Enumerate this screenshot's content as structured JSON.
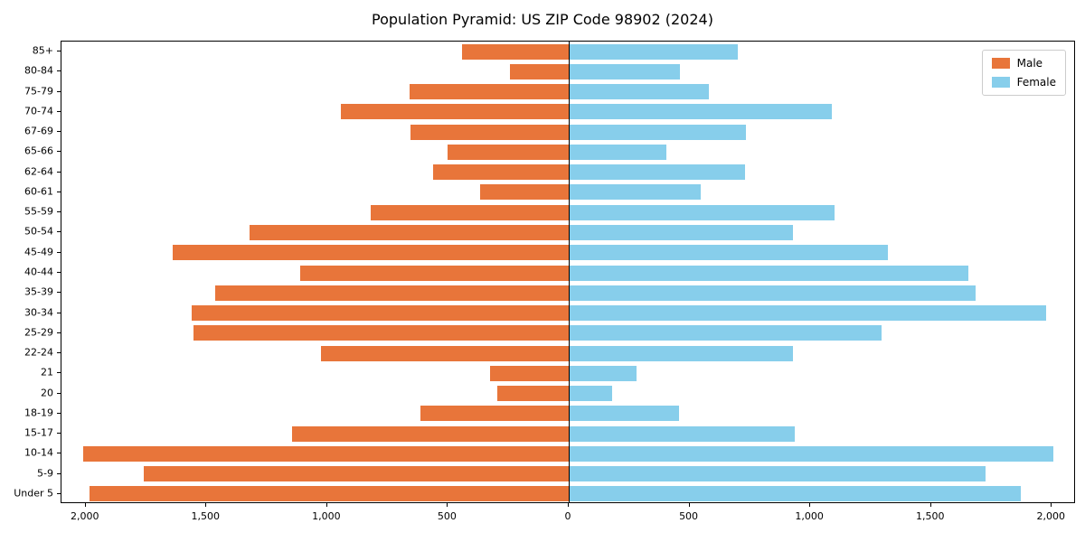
{
  "chart_data": {
    "type": "bar",
    "variant": "population-pyramid",
    "orientation": "horizontal",
    "title": "Population Pyramid: US ZIP Code 98902 (2024)",
    "xlabel": "",
    "ylabel": "",
    "categories_top_to_bottom": [
      "85+",
      "80-84",
      "75-79",
      "70-74",
      "67-69",
      "65-66",
      "62-64",
      "60-61",
      "55-59",
      "50-54",
      "45-49",
      "40-44",
      "35-39",
      "30-34",
      "25-29",
      "22-24",
      "21",
      "20",
      "18-19",
      "15-17",
      "10-14",
      "5-9",
      "Under 5"
    ],
    "series": [
      {
        "name": "Male",
        "color": "#e8753a",
        "side": "left",
        "values": [
          440,
          245,
          660,
          945,
          655,
          500,
          560,
          365,
          820,
          1320,
          1640,
          1110,
          1465,
          1560,
          1555,
          1025,
          325,
          295,
          615,
          1145,
          2010,
          1760,
          1985
        ]
      },
      {
        "name": "Female",
        "color": "#87ceeb",
        "side": "right",
        "values": [
          700,
          460,
          580,
          1090,
          735,
          405,
          730,
          545,
          1100,
          930,
          1320,
          1655,
          1685,
          1975,
          1295,
          930,
          280,
          180,
          455,
          935,
          2005,
          1725,
          1870
        ]
      }
    ],
    "xlim": [
      -2100,
      2100
    ],
    "x_ticks": [
      -2000,
      -1500,
      -1000,
      -500,
      0,
      500,
      1000,
      1500,
      2000
    ],
    "x_tick_labels": [
      "2,000",
      "1,500",
      "1,000",
      "500",
      "0",
      "500",
      "1,000",
      "1,500",
      "2,000"
    ],
    "grid": false,
    "legend_position": "upper-right"
  }
}
